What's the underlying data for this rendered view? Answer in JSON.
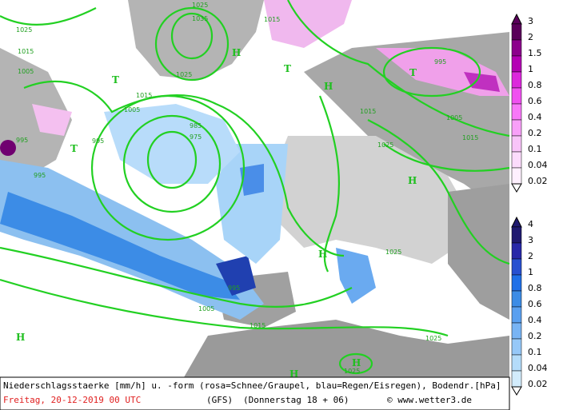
{
  "map": {
    "isobar_labels": [
      "1025",
      "1035",
      "1025",
      "1015",
      "1015",
      "1005",
      "1025",
      "1005",
      "995",
      "985",
      "975",
      "995",
      "995",
      "1015",
      "1025",
      "1015",
      "1025",
      "1005",
      "995",
      "1015",
      "1025",
      "1025",
      "995",
      "1005",
      "1015"
    ],
    "pressure_centers": [
      "H",
      "T",
      "T",
      "H",
      "T",
      "T",
      "H",
      "H",
      "H",
      "H",
      "H"
    ]
  },
  "legend": {
    "snow": [
      "3",
      "2",
      "1.5",
      "1",
      "0.8",
      "0.6",
      "0.4",
      "0.2",
      "0.1",
      "0.04",
      "0.02"
    ],
    "rain": [
      "4",
      "3",
      "2",
      "1",
      "0.8",
      "0.6",
      "0.4",
      "0.2",
      "0.1",
      "0.04",
      "0.02"
    ]
  },
  "footer": {
    "description": "Niederschlagsstaerke [mm/h] u. -form (rosa=Schnee/Graupel, blau=Regen/Eisregen), Bodendr.[hPa]",
    "date": "Freitag, 20-12-2019  00 UTC",
    "model": "(GFS)",
    "run": "(Donnerstag 18 + 06)",
    "credit": "© www.wetter3.de"
  }
}
